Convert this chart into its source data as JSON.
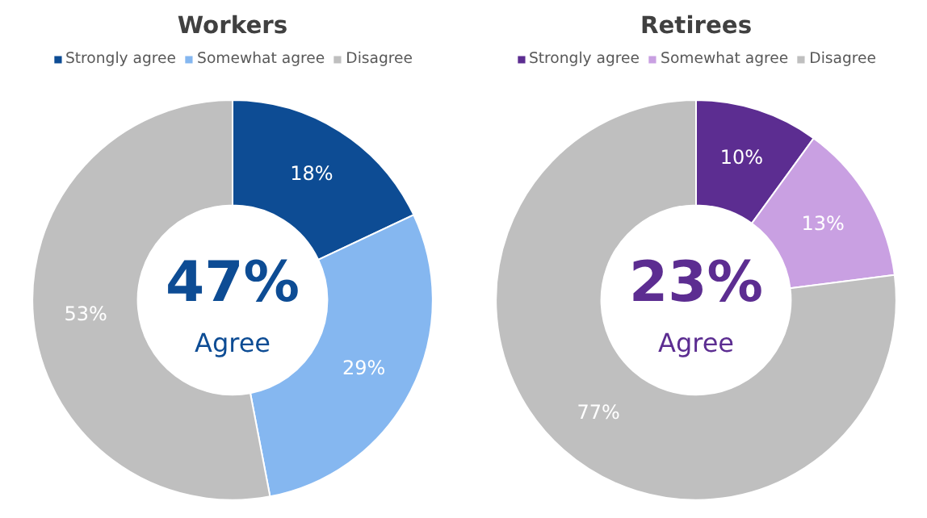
{
  "chart_data": [
    {
      "type": "donut",
      "title": "Workers",
      "categories": [
        "Strongly agree",
        "Somewhat agree",
        "Disagree"
      ],
      "values": [
        18,
        29,
        53
      ],
      "colors": [
        "#0d4c94",
        "#85b7f0",
        "#bfbfbf"
      ],
      "value_labels": [
        "18%",
        "29%",
        "53%"
      ],
      "legend": "top",
      "annotations": [
        "47%",
        "Agree"
      ]
    },
    {
      "type": "donut",
      "title": "Retirees",
      "categories": [
        "Strongly agree",
        "Somewhat agree",
        "Disagree"
      ],
      "values": [
        10,
        13,
        77
      ],
      "colors": [
        "#5c2d91",
        "#c9a0e2",
        "#bfbfbf"
      ],
      "value_labels": [
        "10%",
        "13%",
        "77%"
      ],
      "legend": "top",
      "annotations": [
        "23%",
        "Agree"
      ]
    }
  ]
}
